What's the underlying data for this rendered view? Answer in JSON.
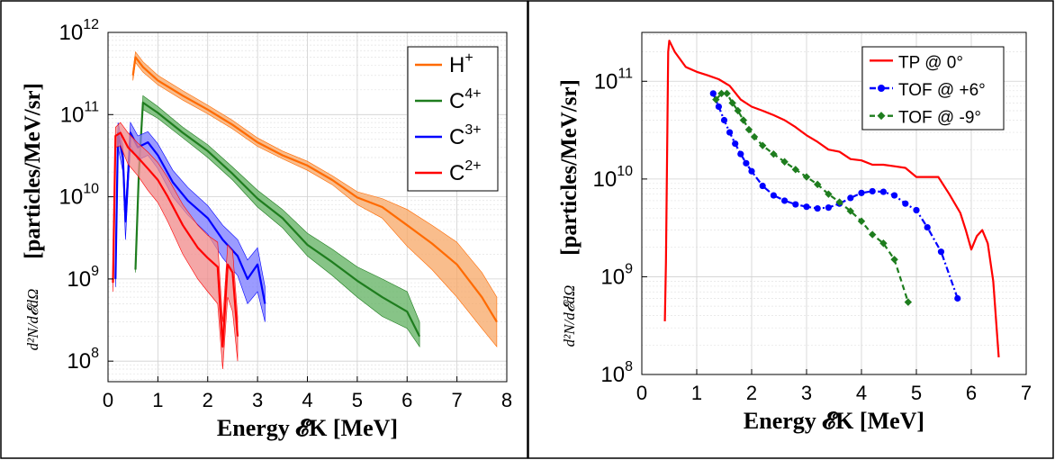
{
  "figure": {
    "panels": 2
  },
  "chart_data": [
    {
      "type": "line",
      "title": "",
      "xlabel": "Energy 𝓔K [MeV]",
      "ylabel": "[particles/MeV/sr]",
      "ylabel_prefix": "d²N/d𝓔dΩ",
      "xlim": [
        0,
        8
      ],
      "ylim_log10": [
        7.75,
        12
      ],
      "xscale": "linear",
      "yscale": "log",
      "xticks": [
        "0",
        "1",
        "2",
        "3",
        "4",
        "5",
        "6",
        "7",
        "8"
      ],
      "yticks": [
        {
          "base": "10",
          "exp": "8"
        },
        {
          "base": "10",
          "exp": "9"
        },
        {
          "base": "10",
          "exp": "10"
        },
        {
          "base": "10",
          "exp": "11"
        },
        {
          "base": "10",
          "exp": "12"
        }
      ],
      "grid": true,
      "legend_position": "top-right",
      "series": [
        {
          "name": "H+",
          "name_base": "H",
          "name_sup": "+",
          "color": "#ff6a00",
          "band_color": "#f7a766",
          "x": [
            0.5,
            0.55,
            0.7,
            1.0,
            1.5,
            2.0,
            2.5,
            3.0,
            3.5,
            4.0,
            4.5,
            5.0,
            5.5,
            6.0,
            6.5,
            7.0,
            7.5,
            7.8
          ],
          "y": [
            300000000000.0,
            500000000000.0,
            380000000000.0,
            260000000000.0,
            170000000000.0,
            115000000000.0,
            75000000000.0,
            46000000000.0,
            32000000000.0,
            24000000000.0,
            16000000000.0,
            9800000000.0,
            7500000000.0,
            4500000000.0,
            2700000000.0,
            1500000000.0,
            600000000.0,
            300000000.0
          ],
          "band_low": [
            260000000000.0,
            430000000000.0,
            330000000000.0,
            230000000000.0,
            150000000000.0,
            102000000000.0,
            67000000000.0,
            41000000000.0,
            29000000000.0,
            21000000000.0,
            14000000000.0,
            8000000000.0,
            5500000000.0,
            2500000000.0,
            1300000000.0,
            600000000.0,
            250000000.0,
            150000000.0
          ],
          "band_high": [
            340000000000.0,
            580000000000.0,
            440000000000.0,
            300000000000.0,
            195000000000.0,
            130000000000.0,
            85000000000.0,
            52000000000.0,
            36000000000.0,
            27000000000.0,
            18000000000.0,
            11500000000.0,
            9500000000.0,
            7000000000.0,
            4500000000.0,
            2800000000.0,
            1200000000.0,
            600000000.0
          ]
        },
        {
          "name": "C4+",
          "name_base": "C",
          "name_sup": "4+",
          "color": "#1e7d1e",
          "band_color": "#5fb05f",
          "x": [
            0.55,
            0.62,
            0.7,
            1.0,
            1.5,
            2.0,
            2.5,
            3.0,
            3.5,
            4.0,
            4.5,
            5.0,
            5.5,
            6.0,
            6.25
          ],
          "y": [
            1300000000.0,
            20000000000.0,
            140000000000.0,
            105000000000.0,
            60000000000.0,
            36000000000.0,
            19000000000.0,
            9500000000.0,
            5500000000.0,
            2600000000.0,
            1600000000.0,
            950000000.0,
            600000000.0,
            400000000.0,
            200000000.0
          ],
          "band_low": [
            1200000000.0,
            16000000000.0,
            115000000000.0,
            90000000000.0,
            52000000000.0,
            30000000000.0,
            16000000000.0,
            7500000000.0,
            4200000000.0,
            1900000000.0,
            1100000000.0,
            600000000.0,
            350000000.0,
            250000000.0,
            150000000.0
          ],
          "band_high": [
            1400000000.0,
            24000000000.0,
            170000000000.0,
            125000000000.0,
            70000000000.0,
            43000000000.0,
            23000000000.0,
            12000000000.0,
            7000000000.0,
            3600000000.0,
            2300000000.0,
            1400000000.0,
            1000000000.0,
            700000000.0,
            300000000.0
          ]
        },
        {
          "name": "C3+",
          "name_base": "C",
          "name_sup": "3+",
          "color": "#0000ff",
          "band_color": "#7a7aff",
          "x": [
            0.15,
            0.2,
            0.3,
            0.35,
            0.45,
            0.6,
            0.8,
            1.0,
            1.3,
            1.6,
            2.0,
            2.3,
            2.6,
            2.8,
            3.0,
            3.15
          ],
          "y": [
            1000000000.0,
            60000000000.0,
            30000000000.0,
            5000000000.0,
            60000000000.0,
            40000000000.0,
            46000000000.0,
            32000000000.0,
            15000000000.0,
            9000000000.0,
            5500000000.0,
            3000000000.0,
            1900000000.0,
            1000000000.0,
            1500000000.0,
            500000000.0
          ],
          "band_low": [
            800000000.0,
            40000000000.0,
            20000000000.0,
            3000000000.0,
            42000000000.0,
            28000000000.0,
            32000000000.0,
            22000000000.0,
            10000000000.0,
            6000000000.0,
            3500000000.0,
            1800000000.0,
            1100000000.0,
            500000000.0,
            700000000.0,
            300000000.0
          ],
          "band_high": [
            1200000000.0,
            80000000000.0,
            42000000000.0,
            7000000000.0,
            80000000000.0,
            55000000000.0,
            62000000000.0,
            44000000000.0,
            21000000000.0,
            13000000000.0,
            7800000000.0,
            4500000000.0,
            3000000000.0,
            1700000000.0,
            2400000000.0,
            800000000.0
          ]
        },
        {
          "name": "C2+",
          "name_base": "C",
          "name_sup": "2+",
          "color": "#ff0000",
          "band_color": "#f08a8a",
          "x": [
            0.1,
            0.15,
            0.25,
            0.4,
            0.6,
            0.8,
            1.0,
            1.2,
            1.5,
            1.8,
            2.0,
            2.2,
            2.3,
            2.4,
            2.5,
            2.6
          ],
          "y": [
            900000000.0,
            55000000000.0,
            60000000000.0,
            40000000000.0,
            30000000000.0,
            22000000000.0,
            16000000000.0,
            10000000000.0,
            4500000000.0,
            2400000000.0,
            1800000000.0,
            1400000000.0,
            150000000.0,
            1500000000.0,
            1200000000.0,
            200000000.0
          ],
          "band_low": [
            700000000.0,
            40000000000.0,
            42000000000.0,
            25000000000.0,
            18000000000.0,
            12000000000.0,
            8500000000.0,
            5000000000.0,
            2000000000.0,
            1000000000.0,
            700000000.0,
            500000000.0,
            80000000.0,
            600000000.0,
            400000000.0,
            100000000.0
          ],
          "band_high": [
            1100000000.0,
            70000000000.0,
            80000000000.0,
            60000000000.0,
            45000000000.0,
            35000000000.0,
            26000000000.0,
            17000000000.0,
            8000000000.0,
            4500000000.0,
            3400000000.0,
            2800000000.0,
            300000000.0,
            2600000000.0,
            2200000000.0,
            350000000.0
          ]
        }
      ]
    },
    {
      "type": "line",
      "title": "",
      "xlabel": "Energy 𝓔K [MeV]",
      "ylabel": "[particles/MeV/sr]",
      "ylabel_prefix": "d²N/d𝓔dΩ",
      "xlim": [
        0,
        7
      ],
      "ylim_log10": [
        8,
        11.5
      ],
      "xscale": "linear",
      "yscale": "log",
      "xticks": [
        "0",
        "1",
        "2",
        "3",
        "4",
        "5",
        "6",
        "7"
      ],
      "yticks": [
        {
          "base": "10",
          "exp": "8"
        },
        {
          "base": "10",
          "exp": "9"
        },
        {
          "base": "10",
          "exp": "10"
        },
        {
          "base": "10",
          "exp": "11"
        }
      ],
      "grid": true,
      "legend_position": "top-right",
      "series": [
        {
          "name": "TP @ 0°",
          "color": "#ff0000",
          "marker": "none",
          "linestyle": "solid",
          "x": [
            0.42,
            0.44,
            0.48,
            0.5,
            0.6,
            0.8,
            1.0,
            1.2,
            1.4,
            1.6,
            1.8,
            2.0,
            2.2,
            2.4,
            2.6,
            2.8,
            3.0,
            3.2,
            3.4,
            3.6,
            3.8,
            4.0,
            4.2,
            4.4,
            4.6,
            4.8,
            5.0,
            5.2,
            5.4,
            5.6,
            5.8,
            5.9,
            6.0,
            6.1,
            6.2,
            6.3,
            6.4,
            6.5
          ],
          "y": [
            350000000.0,
            1400000000.0,
            200000000000.0,
            260000000000.0,
            200000000000.0,
            140000000000.0,
            125000000000.0,
            115000000000.0,
            105000000000.0,
            90000000000.0,
            65000000000.0,
            55000000000.0,
            50000000000.0,
            45000000000.0,
            40000000000.0,
            34000000000.0,
            28000000000.0,
            24000000000.0,
            20000000000.0,
            19000000000.0,
            16000000000.0,
            15500000000.0,
            14000000000.0,
            14000000000.0,
            13500000000.0,
            13000000000.0,
            10500000000.0,
            10500000000.0,
            10500000000.0,
            7000000000.0,
            4500000000.0,
            3000000000.0,
            1900000000.0,
            2600000000.0,
            3000000000.0,
            2200000000.0,
            900000000.0,
            150000000.0
          ]
        },
        {
          "name": "TOF @ +6°",
          "color": "#0000ff",
          "marker": "circle",
          "linestyle": "dashdot",
          "x": [
            1.3,
            1.4,
            1.5,
            1.6,
            1.7,
            1.8,
            1.9,
            2.0,
            2.2,
            2.4,
            2.6,
            2.8,
            3.0,
            3.2,
            3.4,
            3.6,
            3.8,
            4.0,
            4.2,
            4.4,
            4.6,
            4.8,
            5.0,
            5.2,
            5.45,
            5.75
          ],
          "y": [
            75000000000.0,
            55000000000.0,
            40000000000.0,
            30000000000.0,
            23000000000.0,
            18000000000.0,
            14500000000.0,
            12000000000.0,
            8500000000.0,
            6800000000.0,
            6000000000.0,
            5500000000.0,
            5200000000.0,
            5000000000.0,
            5100000000.0,
            5600000000.0,
            6400000000.0,
            7200000000.0,
            7500000000.0,
            7400000000.0,
            6800000000.0,
            5600000000.0,
            4800000000.0,
            3200000000.0,
            1800000000.0,
            600000000.0
          ]
        },
        {
          "name": "TOF @ -9°",
          "color": "#1e7d1e",
          "marker": "diamond",
          "linestyle": "dashed",
          "x": [
            1.35,
            1.45,
            1.55,
            1.65,
            1.75,
            1.85,
            1.95,
            2.05,
            2.2,
            2.4,
            2.6,
            2.8,
            3.0,
            3.2,
            3.4,
            3.6,
            3.8,
            4.0,
            4.2,
            4.4,
            4.6,
            4.85
          ],
          "y": [
            65000000000.0,
            75000000000.0,
            75000000000.0,
            60000000000.0,
            50000000000.0,
            40000000000.0,
            32000000000.0,
            27000000000.0,
            22000000000.0,
            18000000000.0,
            15000000000.0,
            12500000000.0,
            10500000000.0,
            8800000000.0,
            7000000000.0,
            5800000000.0,
            4700000000.0,
            3700000000.0,
            2700000000.0,
            2200000000.0,
            1500000000.0,
            550000000.0
          ]
        }
      ]
    }
  ]
}
